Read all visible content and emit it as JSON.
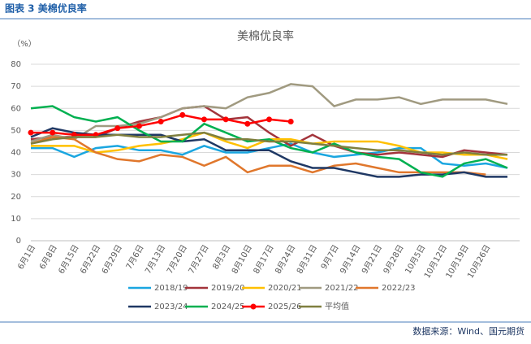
{
  "header": "图表 3  美棉优良率",
  "source": "数据来源：Wind、国元期货",
  "chart_data": {
    "type": "line",
    "title": "美棉优良率",
    "y_label": "（%）",
    "categories": [
      "6月1日",
      "6月8日",
      "6月15日",
      "6月22日",
      "6月29日",
      "7月6日",
      "7月13日",
      "7月20日",
      "7月27日",
      "8月3日",
      "8月10日",
      "8月17日",
      "8月24日",
      "8月31日",
      "9月7日",
      "9月14日",
      "9月21日",
      "9月28日",
      "10月5日",
      "10月12日",
      "10月19日",
      "10月26日",
      null
    ],
    "ylim": [
      0,
      80
    ],
    "yticks": [
      0,
      10,
      20,
      30,
      40,
      50,
      60,
      70,
      80
    ],
    "series": [
      {
        "name": "2018/19",
        "color": "#1aa6e0",
        "values": [
          42,
          42,
          38,
          42,
          43,
          41,
          41,
          39,
          43,
          40,
          40,
          42,
          44,
          40,
          38,
          39,
          40,
          42,
          42,
          35,
          34,
          35,
          33
        ]
      },
      {
        "name": "2019/20",
        "color": "#a3343b",
        "values": [
          46,
          47,
          47,
          47,
          51,
          54,
          56,
          60,
          61,
          55,
          56,
          49,
          43,
          48,
          43,
          40,
          39,
          40,
          39,
          38,
          41,
          40,
          39
        ]
      },
      {
        "name": "2020/21",
        "color": "#ffc000",
        "values": [
          43,
          43,
          43,
          40,
          41,
          43,
          44,
          46,
          49,
          45,
          42,
          46,
          46,
          44,
          45,
          45,
          45,
          43,
          40,
          40,
          39,
          39,
          37
        ]
      },
      {
        "name": "2021/22",
        "color": "#a09a80",
        "values": [
          45,
          48,
          46,
          52,
          52,
          53,
          56,
          60,
          61,
          60,
          65,
          67,
          71,
          70,
          61,
          64,
          64,
          65,
          62,
          64,
          64,
          64,
          62
        ]
      },
      {
        "name": "2022/23",
        "color": "#e0772c",
        "values": [
          44,
          47,
          46,
          40,
          37,
          36,
          39,
          38,
          34,
          38,
          31,
          34,
          34,
          31,
          34,
          35,
          33,
          31,
          31,
          31,
          31,
          30,
          null
        ]
      },
      {
        "name": "2023/24",
        "color": "#1f3864",
        "values": [
          47,
          51,
          49,
          48,
          48,
          48,
          48,
          45,
          46,
          41,
          41,
          41,
          36,
          33,
          33,
          31,
          29,
          29,
          30,
          30,
          31,
          29,
          29
        ]
      },
      {
        "name": "2024/25",
        "color": "#00b050",
        "values": [
          60,
          61,
          56,
          54,
          56,
          50,
          45,
          45,
          53,
          49,
          45,
          46,
          42,
          40,
          44,
          40,
          38,
          37,
          31,
          29,
          35,
          37,
          33
        ]
      },
      {
        "name": "2025/26",
        "color": "#ff0000",
        "markers": true,
        "values": [
          49,
          49,
          48,
          48,
          51,
          52,
          54,
          57,
          55,
          55,
          53,
          55,
          54,
          null,
          null,
          null,
          null,
          null,
          null,
          null,
          null,
          null,
          null
        ]
      },
      {
        "name": "平均值",
        "color": "#7f7f3f",
        "values": [
          44,
          46,
          47,
          47,
          48,
          47,
          47,
          48,
          49,
          46,
          46,
          45,
          45,
          44,
          43,
          42,
          41,
          41,
          40,
          39,
          40,
          39,
          39
        ]
      }
    ]
  }
}
